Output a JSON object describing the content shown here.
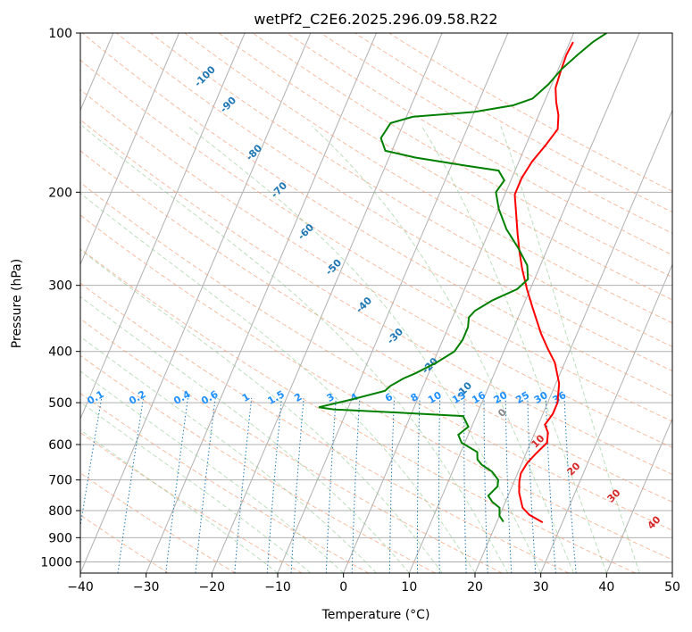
{
  "chart_data": {
    "type": "line",
    "title": "wetPf2_C2E6.2025.296.09.58.R22",
    "xlabel": "Temperature (°C)",
    "ylabel": "Pressure (hPa)",
    "xlim": [
      -40,
      50
    ],
    "ylim": [
      1050,
      100
    ],
    "y_scale": "log",
    "grid": true,
    "xticks": [
      "−40",
      "−30",
      "−20",
      "−10",
      "0",
      "10",
      "20",
      "30",
      "40",
      "50"
    ],
    "xtick_values": [
      -40,
      -30,
      -20,
      -10,
      0,
      10,
      20,
      30,
      40,
      50
    ],
    "yticks": [
      "100",
      "200",
      "300",
      "400",
      "500",
      "600",
      "700",
      "800",
      "900",
      "1000"
    ],
    "ytick_values": [
      100,
      200,
      300,
      400,
      500,
      600,
      700,
      800,
      900,
      1000
    ],
    "mixing_ratio_labels": [
      "0.1",
      "0.2",
      "0.4",
      "0.6",
      "1",
      "1.5",
      "2",
      "3",
      "4",
      "6",
      "8",
      "10",
      "13",
      "16",
      "20",
      "25",
      "30",
      "36"
    ],
    "dry_adiabat_labels": [
      "-100",
      "-90",
      "-80",
      "-70",
      "-60",
      "-50",
      "-40",
      "-30",
      "-20",
      "-10"
    ],
    "moist_adiabat_labels": [
      "0",
      "10",
      "20",
      "30",
      "40"
    ],
    "series": [
      {
        "name": "Temperature",
        "color": "#ff0000",
        "points": [
          [
            27.0,
            842
          ],
          [
            24.5,
            815
          ],
          [
            23.0,
            790
          ],
          [
            21.5,
            740
          ],
          [
            20.8,
            705
          ],
          [
            20.5,
            680
          ],
          [
            20.8,
            650
          ],
          [
            21.5,
            625
          ],
          [
            22.5,
            595
          ],
          [
            22.0,
            570
          ],
          [
            21.0,
            550
          ],
          [
            21.5,
            525
          ],
          [
            21.5,
            500
          ],
          [
            20.5,
            460
          ],
          [
            18.5,
            420
          ],
          [
            16.5,
            395
          ],
          [
            14.5,
            370
          ],
          [
            11.5,
            330
          ],
          [
            9.5,
            305
          ],
          [
            7.5,
            280
          ],
          [
            6.0,
            260
          ],
          [
            4.5,
            240
          ],
          [
            3.0,
            220
          ],
          [
            1.5,
            202
          ],
          [
            1.5,
            188
          ],
          [
            2.0,
            175
          ],
          [
            3.0,
            163
          ],
          [
            3.8,
            152
          ],
          [
            3.0,
            143
          ],
          [
            1.8,
            135
          ],
          [
            0.8,
            127
          ],
          [
            0.5,
            118
          ],
          [
            0.3,
            110
          ],
          [
            0.5,
            104
          ]
        ]
      },
      {
        "name": "Dewpoint",
        "color": "#008000",
        "points": [
          [
            21.0,
            840
          ],
          [
            20.0,
            818
          ],
          [
            19.5,
            790
          ],
          [
            18.0,
            770
          ],
          [
            17.0,
            750
          ],
          [
            17.8,
            720
          ],
          [
            17.5,
            700
          ],
          [
            16.0,
            675
          ],
          [
            14.0,
            655
          ],
          [
            13.0,
            640
          ],
          [
            12.5,
            620
          ],
          [
            9.5,
            595
          ],
          [
            8.5,
            575
          ],
          [
            9.5,
            555
          ],
          [
            8.0,
            530
          ],
          [
            -2.0,
            522
          ],
          [
            -12.0,
            515
          ],
          [
            -14.5,
            510
          ],
          [
            -10.0,
            493
          ],
          [
            -5.5,
            475
          ],
          [
            -5.0,
            465
          ],
          [
            -3.5,
            450
          ],
          [
            -2.0,
            440
          ],
          [
            0.5,
            420
          ],
          [
            2.5,
            400
          ],
          [
            3.0,
            380
          ],
          [
            3.0,
            360
          ],
          [
            2.5,
            345
          ],
          [
            3.0,
            335
          ],
          [
            5.0,
            320
          ],
          [
            8.0,
            305
          ],
          [
            9.0,
            292
          ],
          [
            8.0,
            275
          ],
          [
            5.5,
            255
          ],
          [
            2.5,
            235
          ],
          [
            0.0,
            215
          ],
          [
            -1.5,
            200
          ],
          [
            -1.0,
            190
          ],
          [
            -2.5,
            182
          ],
          [
            -8.0,
            178
          ],
          [
            -16.0,
            172
          ],
          [
            -21.0,
            167
          ],
          [
            -22.5,
            158
          ],
          [
            -22.0,
            148
          ],
          [
            -19.0,
            144
          ],
          [
            -10.0,
            141
          ],
          [
            -4.5,
            137
          ],
          [
            -2.0,
            133
          ],
          [
            -0.5,
            125
          ],
          [
            0.5,
            117
          ],
          [
            2.0,
            110
          ],
          [
            3.5,
            104
          ],
          [
            5.0,
            100
          ]
        ]
      }
    ]
  }
}
